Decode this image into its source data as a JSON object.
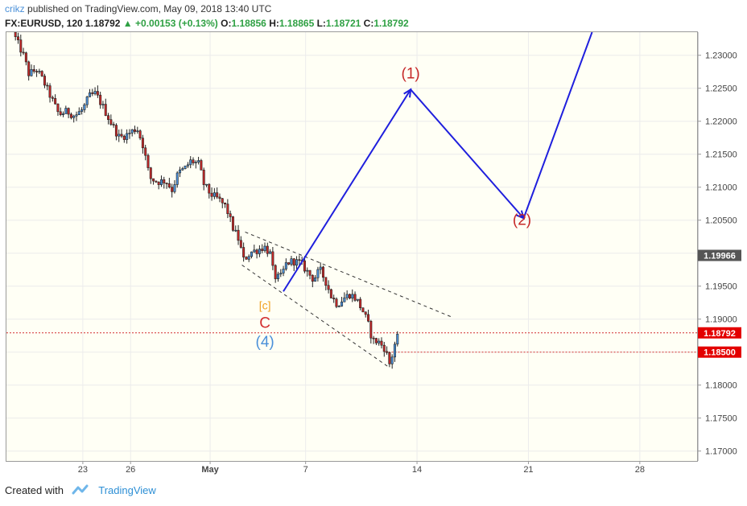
{
  "header": {
    "author": "crikz",
    "published": "published on TradingView.com, May 09, 2018 13:40 UTC"
  },
  "symbol_line": {
    "symbol": "FX:EURUSD, 120",
    "price": "1.18792",
    "change": "+0.00153 (+0.13%)",
    "open_label": "O:",
    "open": "1.18856",
    "high_label": "H:",
    "high": "1.18865",
    "low_label": "L:",
    "low": "1.18721",
    "close_label": "C:",
    "close": "1.18792"
  },
  "footer": {
    "created_with": "Created with",
    "brand": "TradingView"
  },
  "colors": {
    "up": "#2ea043",
    "down": "#d32f2f",
    "wave_red": "#c62828",
    "wave_blue": "#4a90d9",
    "wave_orange": "#f0a020",
    "arrow": "#1f1fdd"
  },
  "chart_data": {
    "type": "candlestick",
    "x_tick_labels": [
      "23",
      "26",
      "May",
      "7",
      "14",
      "21",
      "28"
    ],
    "x_tick_days": [
      23,
      26,
      31,
      37,
      44,
      51,
      58
    ],
    "x_range_days": [
      18.2,
      61.6
    ],
    "x_day_note": "day 31 = May 1",
    "y_ticks": [
      1.17,
      1.175,
      1.18,
      1.185,
      1.19,
      1.195,
      1.2,
      1.205,
      1.21,
      1.215,
      1.22,
      1.225,
      1.23
    ],
    "y_tick_labels": [
      "1.17000",
      "1.17500",
      "1.18000",
      "1.18500",
      "1.19000",
      "1.19500",
      "1.20000",
      "1.20500",
      "1.21000",
      "1.21500",
      "1.22000",
      "1.22500",
      "1.23000"
    ],
    "ylim": [
      1.1685,
      1.2335
    ],
    "price_labels": [
      {
        "value": 1.19966,
        "text": "1.19966",
        "style": "dark"
      },
      {
        "value": 1.18792,
        "text": "1.18792",
        "style": "red"
      },
      {
        "value": 1.185,
        "text": "1.18500",
        "style": "red"
      }
    ],
    "horizontal_lines": [
      1.18792,
      1.185
    ],
    "price_path": [
      [
        18.6,
        1.2335
      ],
      [
        19.3,
        1.2298
      ],
      [
        19.6,
        1.2272
      ],
      [
        20.1,
        1.2278
      ],
      [
        20.5,
        1.2262
      ],
      [
        21.0,
        1.2236
      ],
      [
        21.5,
        1.221
      ],
      [
        22.0,
        1.2215
      ],
      [
        22.5,
        1.2208
      ],
      [
        23.0,
        1.2218
      ],
      [
        23.4,
        1.2238
      ],
      [
        23.8,
        1.2242
      ],
      [
        24.3,
        1.222
      ],
      [
        24.8,
        1.2196
      ],
      [
        25.3,
        1.2175
      ],
      [
        25.8,
        1.218
      ],
      [
        26.4,
        1.219
      ],
      [
        26.8,
        1.2162
      ],
      [
        27.2,
        1.2114
      ],
      [
        27.7,
        1.2108
      ],
      [
        28.2,
        1.211
      ],
      [
        28.6,
        1.2096
      ],
      [
        29.0,
        1.2122
      ],
      [
        29.4,
        1.2128
      ],
      [
        29.8,
        1.214
      ],
      [
        30.3,
        1.2135
      ],
      [
        30.6,
        1.2105
      ],
      [
        31.0,
        1.209
      ],
      [
        31.5,
        1.2082
      ],
      [
        32.0,
        1.207
      ],
      [
        32.4,
        1.204
      ],
      [
        32.8,
        1.202
      ],
      [
        33.1,
        1.199
      ],
      [
        33.6,
        1.2002
      ],
      [
        34.0,
        1.2005
      ],
      [
        34.4,
        1.201
      ],
      [
        34.8,
        1.1998
      ],
      [
        35.0,
        1.1965
      ],
      [
        35.4,
        1.1962
      ],
      [
        35.8,
        1.1985
      ],
      [
        36.2,
        1.1988
      ],
      [
        36.7,
        1.1985
      ],
      [
        37.0,
        1.1975
      ],
      [
        37.5,
        1.196
      ],
      [
        37.9,
        1.1975
      ],
      [
        38.3,
        1.1955
      ],
      [
        38.6,
        1.1935
      ],
      [
        39.0,
        1.1922
      ],
      [
        39.4,
        1.1932
      ],
      [
        39.8,
        1.1938
      ],
      [
        40.2,
        1.193
      ],
      [
        40.6,
        1.1912
      ],
      [
        40.9,
        1.1895
      ],
      [
        41.2,
        1.1868
      ],
      [
        41.6,
        1.1865
      ],
      [
        42.0,
        1.1855
      ],
      [
        42.3,
        1.183
      ],
      [
        42.6,
        1.1862
      ],
      [
        42.9,
        1.1879
      ]
    ],
    "channel_lines": [
      {
        "from": [
          33.2,
          1.2032
        ],
        "to": [
          46.2,
          1.1903
        ]
      },
      {
        "from": [
          33.0,
          1.1982
        ],
        "to": [
          42.3,
          1.1826
        ]
      }
    ],
    "projection_path": [
      [
        35.6,
        1.1942
      ],
      [
        43.6,
        1.2248
      ],
      [
        50.7,
        1.2053
      ],
      [
        55.0,
        1.2335
      ]
    ],
    "wave_labels": [
      {
        "text": "(1)",
        "day": 43.6,
        "price": 1.2265,
        "color": "wave_red"
      },
      {
        "text": "(2)",
        "day": 50.6,
        "price": 1.2043,
        "color": "wave_red"
      },
      {
        "text": "[c]",
        "day": 35.0,
        "price": 1.1915,
        "color": "wave_orange"
      },
      {
        "text": "C",
        "day": 35.0,
        "price": 1.1887,
        "color": "down"
      },
      {
        "text": "(4)",
        "day": 35.0,
        "price": 1.1858,
        "color": "wave_blue"
      }
    ]
  }
}
